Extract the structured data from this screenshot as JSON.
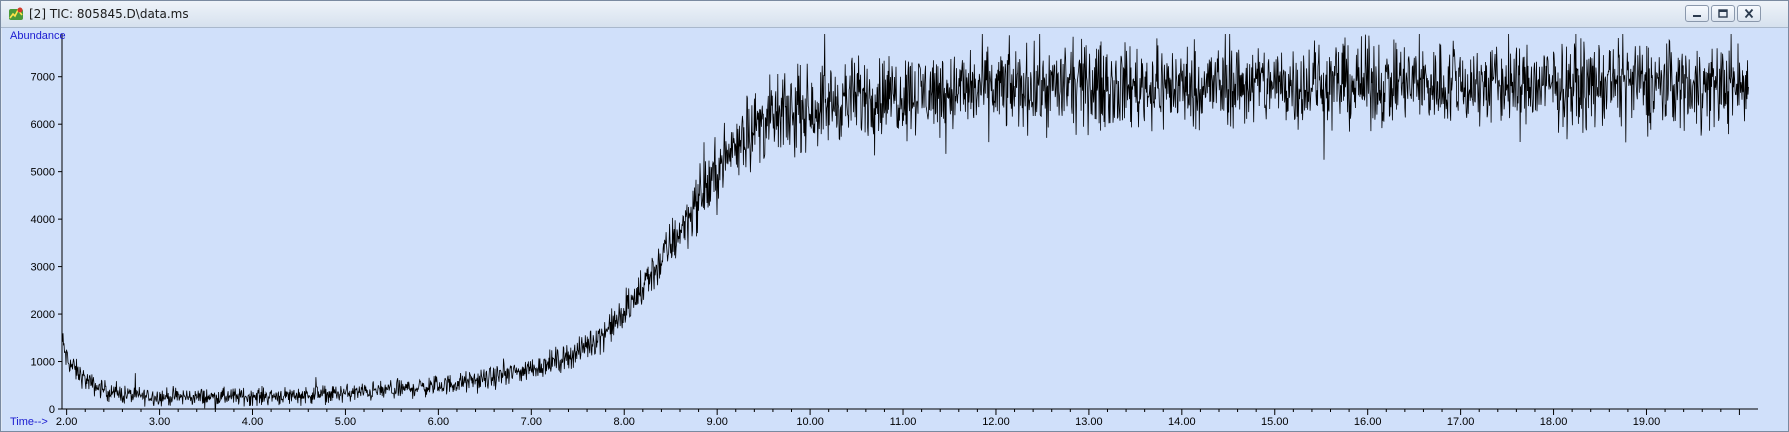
{
  "window": {
    "title": "[2] TIC: 805845.D\\data.ms",
    "app_icon": "chromatogram-app-icon",
    "controls": [
      "minimize-icon",
      "restore-icon",
      "close-icon"
    ]
  },
  "colors": {
    "plot_background": "#d0e0fa",
    "axis_text": "#1a1ad0",
    "trace": "#000000"
  },
  "chart_data": {
    "type": "line",
    "title": "",
    "xlabel": "Time-->",
    "ylabel": "Abundance",
    "xlim": [
      1.95,
      20.2
    ],
    "ylim": [
      0,
      7900
    ],
    "x_ticks": [
      "2.00",
      "3.00",
      "4.00",
      "5.00",
      "6.00",
      "7.00",
      "8.00",
      "9.00",
      "10.00",
      "11.00",
      "12.00",
      "13.00",
      "14.00",
      "15.00",
      "16.00",
      "17.00",
      "18.00",
      "19.00"
    ],
    "y_ticks": [
      "0",
      "1000",
      "2000",
      "3000",
      "4000",
      "5000",
      "6000",
      "7000"
    ],
    "grid": false,
    "series": [
      {
        "x": [
          1.95,
          2.0,
          2.1,
          2.2,
          2.3,
          2.5,
          2.75,
          3.0,
          3.5,
          4.0,
          4.5,
          5.0,
          5.5,
          6.0,
          6.5,
          7.0,
          7.25,
          7.5,
          7.75,
          8.0,
          8.25,
          8.5,
          8.75,
          9.0,
          9.25,
          9.5,
          9.75,
          10.0,
          10.5,
          11.0,
          11.5,
          12.0,
          13.0,
          14.0,
          15.0,
          16.0,
          17.0,
          18.0,
          19.0,
          20.1
        ],
        "y": [
          1450,
          1050,
          800,
          620,
          480,
          340,
          280,
          260,
          250,
          265,
          290,
          330,
          400,
          490,
          620,
          850,
          1000,
          1200,
          1550,
          2000,
          2700,
          3450,
          4250,
          5000,
          5750,
          6050,
          6200,
          6350,
          6550,
          6650,
          6700,
          6750,
          6800,
          6800,
          6850,
          6850,
          6850,
          6800,
          6850,
          6800
        ]
      }
    ]
  }
}
